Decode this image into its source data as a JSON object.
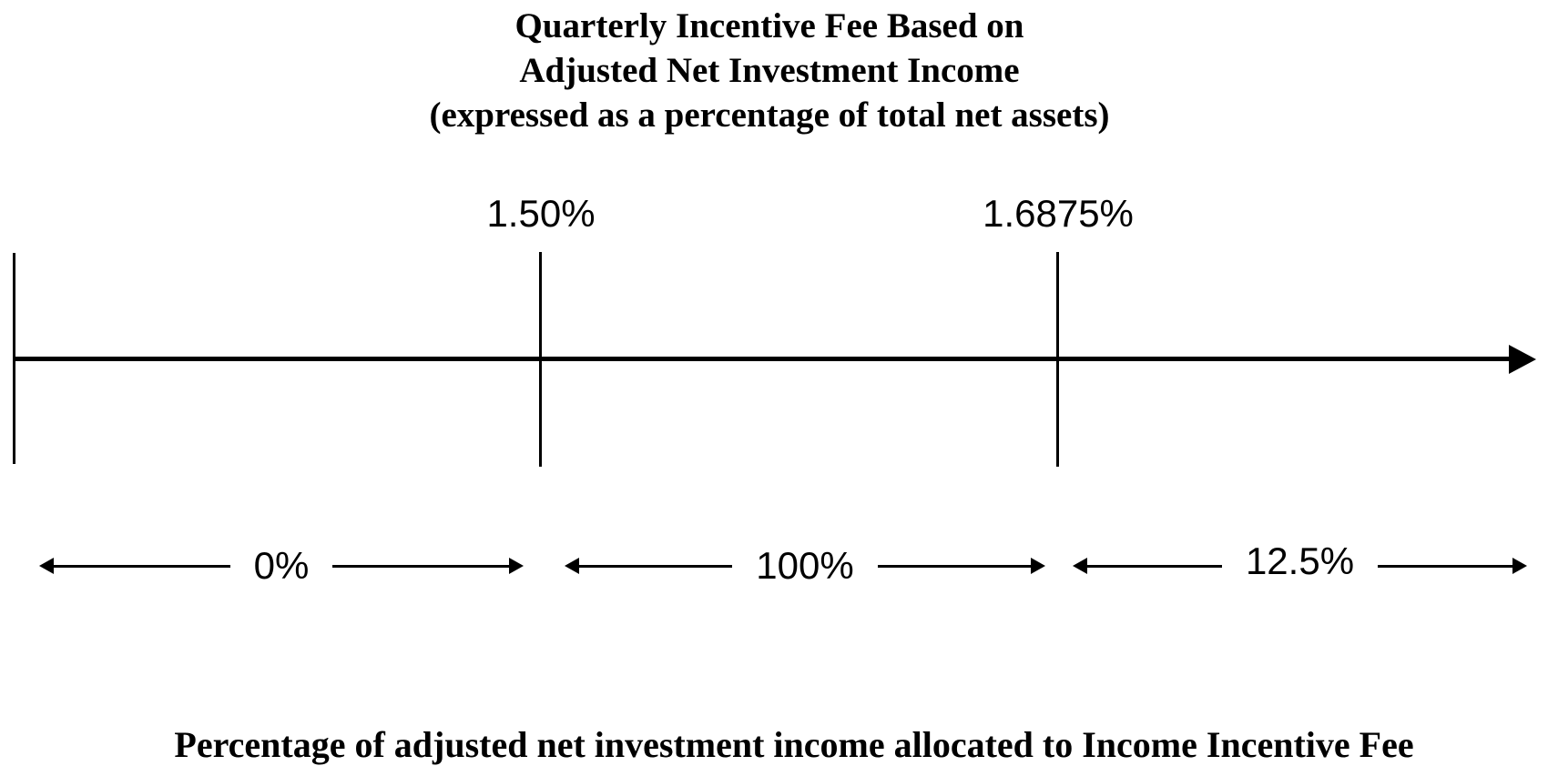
{
  "figure": {
    "title_lines": [
      "Quarterly Incentive Fee Based on",
      "Adjusted Net Investment Income",
      "(expressed as a percentage of total net assets)"
    ],
    "thresholds": [
      {
        "label": "1.50%"
      },
      {
        "label": "1.6875%"
      }
    ],
    "segments": [
      {
        "label": "0%"
      },
      {
        "label": "100%"
      },
      {
        "label": "12.5%"
      }
    ],
    "caption": "Percentage of adjusted net investment income allocated to Income Incentive Fee",
    "colors": {
      "ink": "#000000",
      "background": "#ffffff"
    }
  },
  "chart_data": {
    "type": "table",
    "title": "Quarterly Incentive Fee Based on Adjusted Net Investment Income (expressed as a percentage of total net assets)",
    "axis_threshold_labels": [
      "1.50%",
      "1.6875%"
    ],
    "segment_allocation_labels": [
      "0%",
      "100%",
      "12.5%"
    ],
    "xlabel": "Percentage of adjusted net investment income allocated to Income Incentive Fee",
    "legend_position": "none",
    "grid": false
  }
}
